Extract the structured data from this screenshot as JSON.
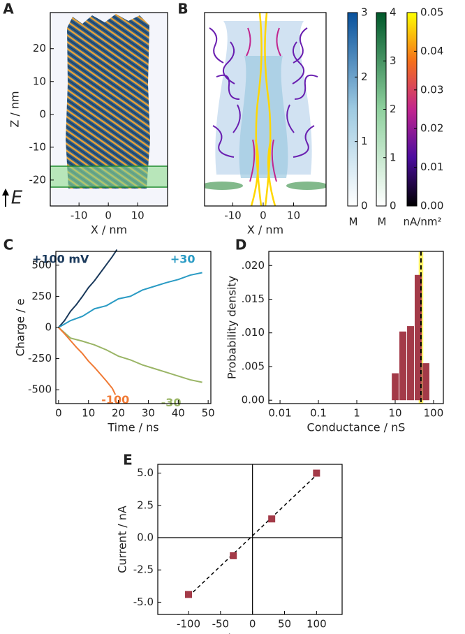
{
  "chart_data": [
    {
      "type": "image",
      "panel": "A",
      "xlabel": "X / nm",
      "ylabel": "Z / nm",
      "xlim": [
        -19.8,
        20.2
      ],
      "xticks": [
        -10,
        0,
        10
      ],
      "ylim": [
        -27.9,
        31
      ],
      "yticks": [
        -20,
        -10,
        0,
        10,
        20
      ],
      "field_label": "E"
    },
    {
      "type": "image",
      "panel": "B",
      "xlabel": "X / nm",
      "xlim": [
        -19.3,
        20.7
      ],
      "xticks": [
        -10,
        0,
        10
      ],
      "colorbars": [
        {
          "lim": [
            0,
            3
          ],
          "ticks": [
            0,
            1,
            2,
            3
          ],
          "unit": "M",
          "colors": [
            "#ffffff",
            "#9ecae1",
            "#08519c"
          ]
        },
        {
          "lim": [
            0,
            4
          ],
          "ticks": [
            0,
            1,
            2,
            3,
            4
          ],
          "unit": "M",
          "colors": [
            "#ffffff",
            "#8fd19e",
            "#00582a"
          ]
        },
        {
          "lim": [
            0,
            0.05
          ],
          "ticks": [
            {
              "value": 0,
              "label": "0.00"
            },
            0.01,
            0.02,
            0.03,
            0.04,
            0.05
          ],
          "unit": "nA/nm²",
          "colors": [
            "#000000",
            "#4b0c9e",
            "#c2258e",
            "#f5701a",
            "#ffff00"
          ]
        }
      ]
    },
    {
      "type": "line",
      "panel": "C",
      "xlabel": "Time / ns",
      "ylabel": "Charge / e",
      "xlim": [
        -0.9,
        50.9
      ],
      "xticks": [
        0,
        10,
        20,
        30,
        40,
        50
      ],
      "ylim": [
        -611,
        611
      ],
      "yticks": [
        -500,
        -250,
        0,
        250,
        500
      ],
      "series": [
        {
          "name": "+100 mV",
          "color": "#1b3a5c",
          "x": [
            0,
            2,
            4,
            6,
            8,
            10,
            12,
            14,
            16,
            18,
            19.5
          ],
          "values": [
            0,
            55,
            130,
            185,
            250,
            320,
            375,
            440,
            505,
            570,
            625
          ]
        },
        {
          "name": "+30",
          "color": "#2a9bc4",
          "x": [
            0,
            4,
            8,
            12,
            16,
            20,
            24,
            28,
            32,
            36,
            40,
            44,
            48
          ],
          "values": [
            0,
            55,
            90,
            150,
            175,
            230,
            250,
            300,
            330,
            360,
            385,
            420,
            440
          ]
        },
        {
          "name": "-30",
          "color": "#9ab566",
          "x": [
            0,
            4,
            8,
            12,
            16,
            20,
            24,
            28,
            32,
            36,
            40,
            44,
            48
          ],
          "values": [
            0,
            -85,
            -110,
            -140,
            -180,
            -230,
            -260,
            -300,
            -330,
            -360,
            -390,
            -420,
            -440
          ]
        },
        {
          "name": "-100",
          "color": "#f07a35",
          "x": [
            0,
            2,
            4,
            6,
            8,
            10,
            12,
            14,
            16,
            18,
            19
          ],
          "values": [
            0,
            -50,
            -105,
            -160,
            -210,
            -270,
            -320,
            -375,
            -430,
            -490,
            -540
          ]
        }
      ]
    },
    {
      "type": "histogram",
      "panel": "D",
      "xlabel": "Conductance / nS",
      "ylabel": "Probability density",
      "log_x": true,
      "xlim": [
        0.0051,
        180
      ],
      "xticks": [
        0.01,
        0.1,
        1,
        10,
        100
      ],
      "ylim": [
        -0.0005,
        0.0221
      ],
      "yticks": [
        {
          "value": 0,
          "label": "0.00"
        },
        {
          "value": 0.005,
          "label": ".005"
        },
        {
          "value": 0.01,
          "label": ".010"
        },
        {
          "value": 0.015,
          "label": ".015"
        },
        {
          "value": 0.02,
          "label": ".020"
        }
      ],
      "bins": [
        8,
        12.6,
        20,
        31.6,
        50,
        79.4
      ],
      "values": [
        0.004,
        0.0102,
        0.011,
        0.0186,
        0.0055
      ],
      "color": "#a33a48",
      "reference_line": 47,
      "reference_band": [
        41,
        54
      ],
      "reference_color": "#fff36b"
    },
    {
      "type": "scatter",
      "panel": "E",
      "xlabel": "Voltage / mV",
      "ylabel": "Current / nA",
      "xlim": [
        -148,
        140
      ],
      "xticks": [
        -100,
        -50,
        0,
        50,
        100
      ],
      "ylim": [
        -5.95,
        5.68
      ],
      "yticks": [
        {
          "value": -5,
          "label": "-5.0"
        },
        {
          "value": -2.5,
          "label": "-2.5"
        },
        {
          "value": 0,
          "label": "0.0"
        },
        {
          "value": 2.5,
          "label": "2.5"
        },
        {
          "value": 5,
          "label": "5.0"
        }
      ],
      "x": [
        -100,
        -30,
        30,
        100
      ],
      "values": [
        -4.4,
        -1.4,
        1.45,
        5.0
      ],
      "errors": [
        0.25,
        0.1,
        0.1,
        0.2
      ],
      "color": "#a33a48",
      "fit": {
        "x": [
          -100,
          100
        ],
        "values": [
          -4.55,
          4.85
        ]
      },
      "zero_lines": true
    }
  ]
}
